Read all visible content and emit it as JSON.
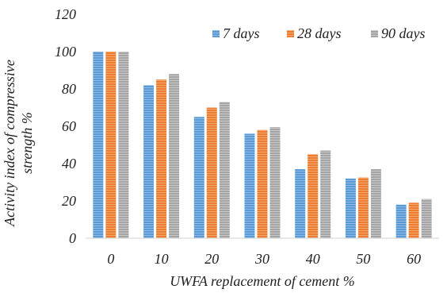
{
  "chart_data": {
    "type": "bar",
    "title": "",
    "xlabel": "UWFA replacement of cement %",
    "ylabel": "Activity index of compressive strength %",
    "ylabel_lines": [
      "Activity index of compressive",
      "strength %"
    ],
    "categories": [
      "0",
      "10",
      "20",
      "30",
      "40",
      "50",
      "60"
    ],
    "series": [
      {
        "name": "7 days",
        "values": [
          100,
          82,
          65,
          56,
          37,
          32,
          18
        ],
        "color": "#5b9bd5"
      },
      {
        "name": "28 days",
        "values": [
          100,
          85,
          70,
          58,
          45,
          32.5,
          19
        ],
        "color": "#ed7d31"
      },
      {
        "name": "90 days",
        "values": [
          100,
          88,
          73,
          59.5,
          47,
          37,
          21
        ],
        "color": "#a5a5a5"
      }
    ],
    "ylim": [
      0,
      120
    ],
    "yticks": [
      0,
      20,
      40,
      60,
      80,
      100,
      120
    ],
    "grid": false,
    "legend_position": "top-right"
  }
}
